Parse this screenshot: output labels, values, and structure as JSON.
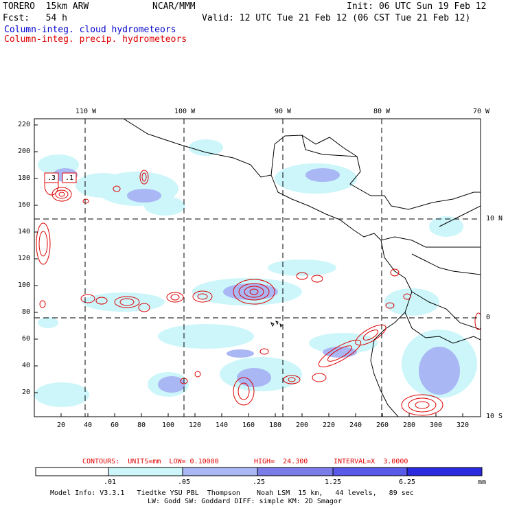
{
  "header": {
    "model": "TORERO  15km ARW",
    "org": "NCAR/MMM",
    "init": "Init: 06 UTC Sun 19 Feb 12",
    "fcst": "Fcst:   54 h",
    "valid": "Valid: 12 UTC Tue 21 Feb 12 (06 CST Tue 21 Feb 12)",
    "legend_cloud": "Column-integ. cloud hydrometeors",
    "legend_precip": "Column-integ. precip. hydrometeors"
  },
  "axes": {
    "top_lon": [
      "110 W",
      "100 W",
      "90 W",
      "80 W",
      "70 W"
    ],
    "right_lat": [
      "10 N",
      "0",
      "10 S"
    ],
    "left_y": [
      "220",
      "200",
      "180",
      "160",
      "140",
      "120",
      "100",
      "80",
      "60",
      "40",
      "20"
    ],
    "bottom_x": [
      "20",
      "40",
      "60",
      "80",
      "100",
      "120",
      "140",
      "160",
      "180",
      "200",
      "220",
      "240",
      "260",
      "280",
      "300",
      "320"
    ]
  },
  "contour_labels": [
    ".3",
    ".1"
  ],
  "contour_info": {
    "units": "CONTOURS:  UNITS=mm  LOW= 0.10000",
    "high": "HIGH=  24.300",
    "interval": "INTERVAL=X  3.0000"
  },
  "colorbar": {
    "ticks": [
      ".01",
      ".05",
      ".25",
      "1.25",
      "6.25"
    ],
    "unit": "mm",
    "colors": [
      "#ffffff",
      "#ccf6fa",
      "#a9b7f5",
      "#7a7de8",
      "#5a5ae8",
      "#2a2ae0"
    ]
  },
  "footer": {
    "line1": "Model Info: V3.3.1   Tiedtke YSU PBL  Thompson    Noah LSM  15 km,   44 levels,   89 sec",
    "line2": "LW: Godd SW: Goddard DIFF: simple KM: 2D Smagor"
  }
}
